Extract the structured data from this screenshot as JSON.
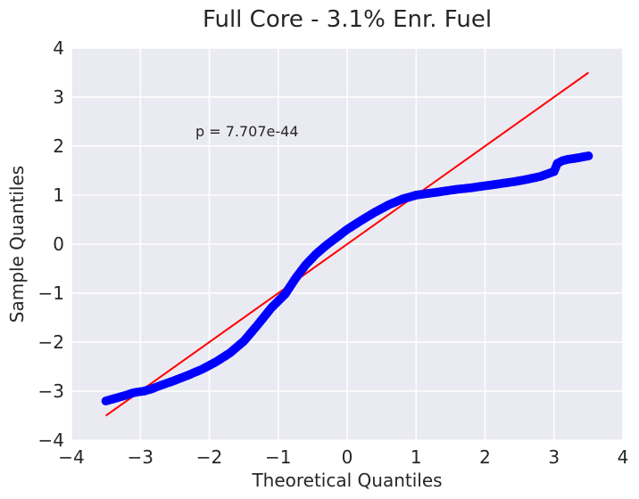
{
  "chart_data": {
    "type": "scatter",
    "title": "Full Core - 3.1% Enr. Fuel",
    "xlabel": "Theoretical Quantiles",
    "ylabel": "Sample Quantiles",
    "xlim": [
      -4,
      4
    ],
    "ylim": [
      -4,
      4
    ],
    "xticks": [
      -4,
      -3,
      -2,
      -1,
      0,
      1,
      2,
      3,
      4
    ],
    "yticks": [
      -4,
      -3,
      -2,
      -1,
      0,
      1,
      2,
      3,
      4
    ],
    "xtick_labels": [
      "−4",
      "−3",
      "−2",
      "−1",
      "0",
      "1",
      "2",
      "3",
      "4"
    ],
    "ytick_labels": [
      "−4",
      "−3",
      "−2",
      "−1",
      "0",
      "1",
      "2",
      "3",
      "4"
    ],
    "grid": true,
    "annotation": "p = 7.707e-44",
    "colors": {
      "points": "#0000ff",
      "line": "#ff0000",
      "background": "#eaeaf2"
    },
    "reference_line": {
      "x": [
        -3.5,
        3.5
      ],
      "y": [
        -3.5,
        3.5
      ]
    },
    "series": [
      {
        "x": [
          -3.5,
          -3.3,
          -3.2,
          -3.12,
          -3.05,
          -3.0,
          -2.95,
          -2.85,
          -2.7,
          -2.5,
          -2.3,
          -2.1,
          -1.9,
          -1.7,
          -1.5,
          -1.3,
          -1.1,
          -0.9,
          -0.75,
          -0.6,
          -0.45,
          -0.3,
          -0.15,
          0.0,
          0.2,
          0.4,
          0.6,
          0.8,
          1.0,
          1.2,
          1.4,
          1.6,
          1.8,
          2.0,
          2.2,
          2.4,
          2.6,
          2.8,
          2.9,
          3.0,
          3.05,
          3.12,
          3.2,
          3.3,
          3.5
        ],
        "y": [
          -3.2,
          -3.12,
          -3.08,
          -3.04,
          -3.02,
          -3.01,
          -3.0,
          -2.96,
          -2.88,
          -2.78,
          -2.67,
          -2.55,
          -2.4,
          -2.22,
          -1.98,
          -1.65,
          -1.3,
          -1.02,
          -0.7,
          -0.42,
          -0.2,
          -0.02,
          0.14,
          0.3,
          0.48,
          0.65,
          0.8,
          0.92,
          1.0,
          1.04,
          1.08,
          1.12,
          1.15,
          1.19,
          1.23,
          1.27,
          1.32,
          1.38,
          1.43,
          1.48,
          1.65,
          1.7,
          1.73,
          1.75,
          1.8
        ]
      }
    ]
  }
}
